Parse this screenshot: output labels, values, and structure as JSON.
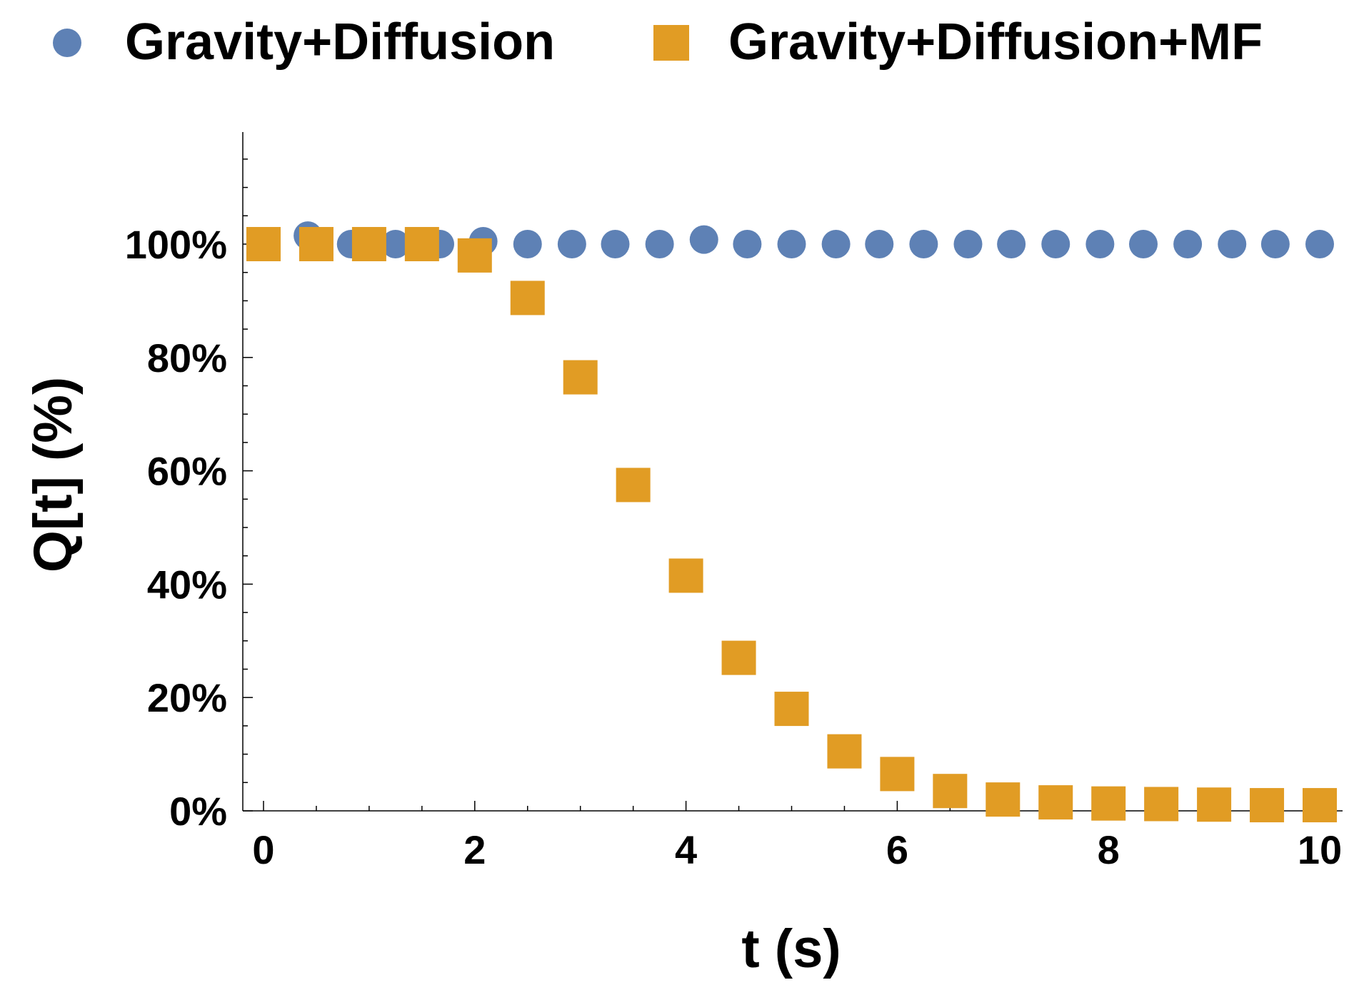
{
  "chart_data": {
    "type": "scatter",
    "title": "",
    "xlabel": "t (s)",
    "ylabel": "Q[t] (%)",
    "xlim": [
      0,
      10
    ],
    "ylim": [
      0,
      120
    ],
    "xticks": [
      0,
      2,
      4,
      6,
      8,
      10
    ],
    "xtick_labels": [
      "0",
      "2",
      "4",
      "6",
      "8",
      "10"
    ],
    "yticks": [
      0,
      20,
      40,
      60,
      80,
      100
    ],
    "ytick_labels": [
      "0%",
      "20%",
      "40%",
      "60%",
      "80%",
      "100%"
    ],
    "legend_position": "top",
    "grid": false,
    "series": [
      {
        "name": "Gravity+Diffusion",
        "marker": "circle",
        "color": "#5e81b5",
        "x": [
          0.0,
          0.42,
          0.83,
          1.25,
          1.67,
          2.08,
          2.5,
          2.92,
          3.33,
          3.75,
          4.17,
          4.58,
          5.0,
          5.42,
          5.83,
          6.25,
          6.67,
          7.08,
          7.5,
          7.92,
          8.33,
          8.75,
          9.17,
          9.58,
          10.0
        ],
        "y": [
          100,
          101.5,
          100,
          100,
          100,
          100.5,
          100,
          100,
          100,
          100,
          100.8,
          100,
          100,
          100,
          100,
          100,
          100,
          100,
          100,
          100,
          100,
          100,
          100,
          100,
          100
        ]
      },
      {
        "name": "Gravity+Diffusion+MF",
        "marker": "square",
        "color": "#e19c24",
        "x": [
          0.0,
          0.5,
          1.0,
          1.5,
          2.0,
          2.5,
          3.0,
          3.5,
          4.0,
          4.5,
          5.0,
          5.5,
          6.0,
          6.5,
          7.0,
          7.5,
          8.0,
          8.5,
          9.0,
          9.5,
          10.0
        ],
        "y": [
          100,
          100,
          100,
          100,
          98,
          90.5,
          76.5,
          57.5,
          41.5,
          27,
          18,
          10.5,
          6.5,
          3.5,
          2,
          1.5,
          1.3,
          1.2,
          1.1,
          1.0,
          1.0
        ]
      }
    ]
  }
}
